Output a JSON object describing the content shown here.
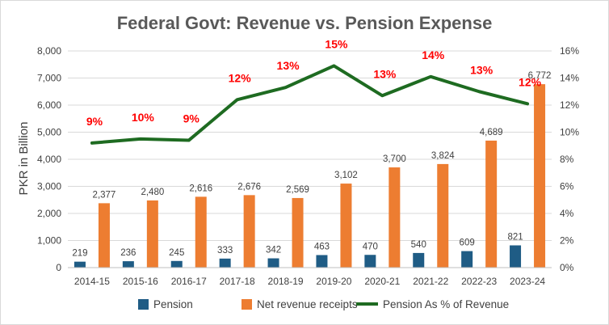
{
  "chart_data": {
    "type": "bar",
    "title": "Federal Govt: Revenue vs. Pension Expense",
    "ylabel": "PKR in Billion",
    "xlabel": "",
    "categories": [
      "2014-15",
      "2015-16",
      "2016-17",
      "2017-18",
      "2018-19",
      "2019-20",
      "2020-21",
      "2021-22",
      "2022-23",
      "2023-24"
    ],
    "ylim": [
      0,
      8000
    ],
    "yticks": [
      "0",
      "1,000",
      "2,000",
      "3,000",
      "4,000",
      "5,000",
      "6,000",
      "7,000",
      "8,000"
    ],
    "y2lim": [
      0,
      16
    ],
    "y2ticks": [
      "0%",
      "2%",
      "4%",
      "6%",
      "8%",
      "10%",
      "12%",
      "14%",
      "16%"
    ],
    "grid": true,
    "legend_position": "bottom",
    "series": [
      {
        "name": "Pension",
        "type": "bar",
        "color": "#1f5c85",
        "values": [
          219,
          236,
          245,
          333,
          342,
          463,
          470,
          540,
          609,
          821
        ],
        "labels": [
          "219",
          "236",
          "245",
          "333",
          "342",
          "463",
          "470",
          "540",
          "609",
          "821"
        ]
      },
      {
        "name": "Net revenue receipts",
        "type": "bar",
        "color": "#ed7d31",
        "values": [
          2377,
          2480,
          2616,
          2676,
          2569,
          3102,
          3700,
          3824,
          4689,
          6772
        ],
        "labels": [
          "2,377",
          "2,480",
          "2,616",
          "2,676",
          "2,569",
          "3,102",
          "3,700",
          "3,824",
          "4,689",
          "6,772"
        ]
      },
      {
        "name": "Pension As % of Revenue",
        "type": "line",
        "axis": "secondary",
        "color": "#1e6b21",
        "values": [
          9.2,
          9.5,
          9.4,
          12.4,
          13.3,
          14.9,
          12.7,
          14.1,
          13.0,
          12.1
        ],
        "labels": [
          "9%",
          "10%",
          "9%",
          "12%",
          "13%",
          "15%",
          "13%",
          "14%",
          "13%",
          "12%"
        ],
        "label_color": "#ff0000"
      }
    ]
  }
}
